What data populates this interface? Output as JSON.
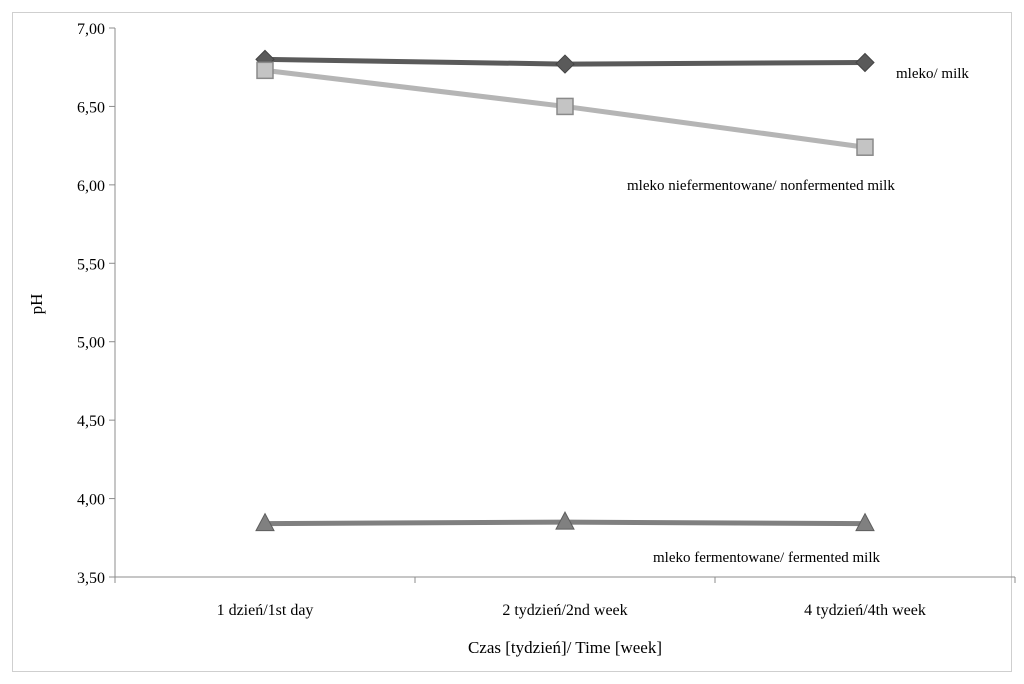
{
  "chart_data": {
    "type": "line",
    "categories": [
      "1 dzień/1st day",
      "2 tydzień/2nd week",
      "4 tydzień/4th week"
    ],
    "series": [
      {
        "name": "mleko/ milk",
        "values": [
          6.8,
          6.77,
          6.78
        ],
        "color": "#5a5a5a",
        "marker": "diamond"
      },
      {
        "name": "mleko niefermentowane/ nonfermented milk",
        "values": [
          6.73,
          6.5,
          6.24
        ],
        "color": "#b5b5b5",
        "marker": "square"
      },
      {
        "name": "mleko fermentowane/ fermented milk",
        "values": [
          3.84,
          3.85,
          3.84
        ],
        "color": "#808080",
        "marker": "triangle"
      }
    ],
    "xlabel": "Czas [tydzień]/ Time [week]",
    "ylabel": "pH",
    "ylim": [
      3.5,
      7.0
    ],
    "yticks": [
      3.5,
      4.0,
      4.5,
      5.0,
      5.5,
      6.0,
      6.5,
      7.0
    ],
    "ytick_labels": [
      "3,50",
      "4,00",
      "4,50",
      "5,00",
      "5,50",
      "6,00",
      "6,50",
      "7,00"
    ],
    "grid": false,
    "legend": "inline labels next to series"
  }
}
